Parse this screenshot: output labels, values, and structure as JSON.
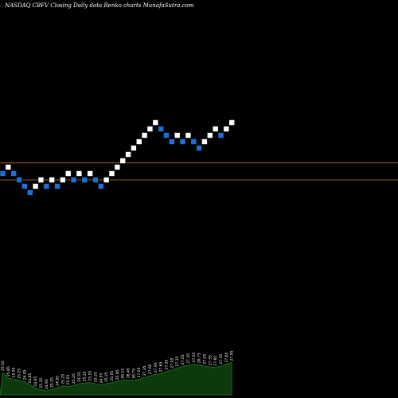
{
  "title": "NASDAQ CBFV  Closing Daily data  Renko  charts MunafaSutra.com",
  "colors": {
    "background": "#000000",
    "up_brick": "#ffffff",
    "down_brick": "#1e6fd9",
    "brick_border": "#000000",
    "level_line": "#b8742a",
    "volume_fill": "#0c3a0c",
    "volume_stroke": "#1f7a1f",
    "label": "#ffffff"
  },
  "chart_data": {
    "type": "renko",
    "title": "NASDAQ CBFV  Closing Daily data  Renko  charts MunafaSutra.com",
    "brick_size": 0.3,
    "bricks": [
      {
        "close": 25.55,
        "dir": "down"
      },
      {
        "close": 25.85,
        "dir": "up"
      },
      {
        "close": 25.55,
        "dir": "down"
      },
      {
        "close": 25.25,
        "dir": "down"
      },
      {
        "close": 24.95,
        "dir": "down"
      },
      {
        "close": 24.65,
        "dir": "down"
      },
      {
        "close": 24.95,
        "dir": "up"
      },
      {
        "close": 25.25,
        "dir": "up"
      },
      {
        "close": 24.95,
        "dir": "down"
      },
      {
        "close": 25.25,
        "dir": "up"
      },
      {
        "close": 24.95,
        "dir": "down"
      },
      {
        "close": 25.25,
        "dir": "up"
      },
      {
        "close": 25.55,
        "dir": "up"
      },
      {
        "close": 25.25,
        "dir": "down"
      },
      {
        "close": 25.55,
        "dir": "up"
      },
      {
        "close": 25.25,
        "dir": "down"
      },
      {
        "close": 25.55,
        "dir": "up"
      },
      {
        "close": 25.25,
        "dir": "down"
      },
      {
        "close": 24.95,
        "dir": "down"
      },
      {
        "close": 25.25,
        "dir": "up"
      },
      {
        "close": 25.55,
        "dir": "up"
      },
      {
        "close": 25.85,
        "dir": "up"
      },
      {
        "close": 26.15,
        "dir": "up"
      },
      {
        "close": 26.45,
        "dir": "up"
      },
      {
        "close": 26.75,
        "dir": "up"
      },
      {
        "close": 27.05,
        "dir": "up"
      },
      {
        "close": 27.35,
        "dir": "up"
      },
      {
        "close": 27.65,
        "dir": "up"
      },
      {
        "close": 27.95,
        "dir": "up"
      },
      {
        "close": 27.65,
        "dir": "down"
      },
      {
        "close": 27.35,
        "dir": "down"
      },
      {
        "close": 27.05,
        "dir": "down"
      },
      {
        "close": 27.35,
        "dir": "up"
      },
      {
        "close": 27.05,
        "dir": "down"
      },
      {
        "close": 27.35,
        "dir": "up"
      },
      {
        "close": 27.05,
        "dir": "down"
      },
      {
        "close": 26.75,
        "dir": "down"
      },
      {
        "close": 27.05,
        "dir": "up"
      },
      {
        "close": 27.35,
        "dir": "up"
      },
      {
        "close": 27.65,
        "dir": "up"
      },
      {
        "close": 27.35,
        "dir": "down"
      },
      {
        "close": 27.65,
        "dir": "up"
      },
      {
        "close": 27.95,
        "dir": "up"
      }
    ],
    "levels": [
      26.05,
      25.25
    ],
    "volume": [
      40,
      30,
      28,
      26,
      24,
      18,
      12,
      9,
      7,
      10,
      13,
      16,
      15,
      17,
      20,
      21,
      22,
      20,
      18,
      20,
      22,
      24,
      26,
      27,
      26,
      28,
      31,
      34,
      37,
      38,
      42,
      45,
      48,
      51,
      53,
      55,
      54,
      52,
      50,
      49,
      52,
      55,
      58
    ],
    "labels": [
      "25.55",
      "25.85",
      "25.55",
      "25.25",
      "24.95",
      "24.65",
      "24.95",
      "25.25",
      "24.95",
      "25.25",
      "24.95",
      "25.25",
      "25.55",
      "25.25",
      "25.55",
      "25.25",
      "25.55",
      "25.25",
      "24.95",
      "25.25",
      "25.55",
      "25.85",
      "26.15",
      "26.45",
      "26.75",
      "27.05",
      "27.35",
      "27.65",
      "27.95",
      "27.65",
      "27.35",
      "27.05",
      "27.35",
      "27.05",
      "27.35",
      "27.05",
      "26.75",
      "27.05",
      "27.35",
      "27.65",
      "27.35",
      "27.65",
      "27.95"
    ]
  }
}
